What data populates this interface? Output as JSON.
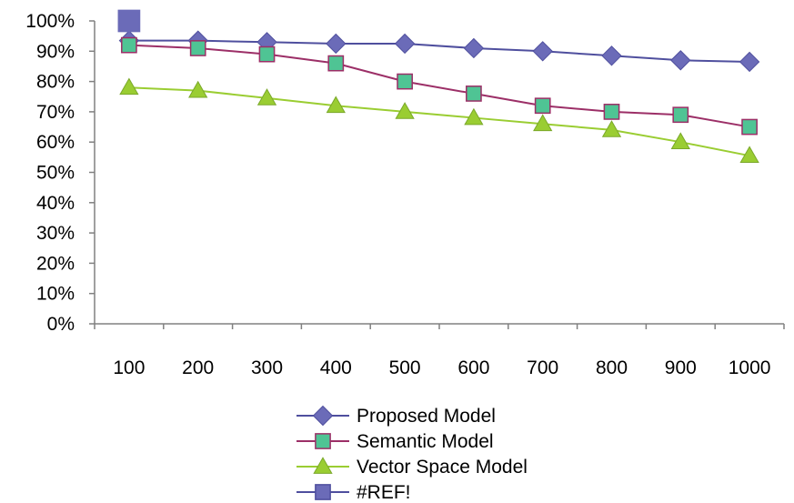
{
  "chart_data": {
    "type": "line",
    "categories": [
      "100",
      "200",
      "300",
      "400",
      "500",
      "600",
      "700",
      "800",
      "900",
      "1000"
    ],
    "ylim": [
      0,
      100
    ],
    "yticks": [
      "0%",
      "10%",
      "20%",
      "30%",
      "40%",
      "50%",
      "60%",
      "70%",
      "80%",
      "90%",
      "100%"
    ],
    "grid": false,
    "legend_position": "bottom",
    "series": [
      {
        "name": "Proposed Model",
        "values": [
          93.5,
          93.5,
          93,
          92.5,
          92.5,
          91,
          90,
          88.5,
          87,
          86.5
        ],
        "color": "#4f4f9e",
        "marker": "diamond",
        "marker_fill": "#6b6bb8"
      },
      {
        "name": "Semantic Model",
        "values": [
          92,
          91,
          89,
          86,
          80,
          76,
          72,
          70,
          69,
          65
        ],
        "color": "#9c2f67",
        "marker": "square",
        "marker_fill": "#4fc494"
      },
      {
        "name": "Vector Space Model",
        "values": [
          78,
          77,
          74.5,
          72,
          70,
          68,
          66,
          64,
          60,
          55.5
        ],
        "color": "#9acd32",
        "marker": "triangle",
        "marker_fill": "#9acd32"
      },
      {
        "name": "#REF!",
        "values": [
          100,
          null,
          null,
          null,
          null,
          null,
          null,
          null,
          null,
          null
        ],
        "color": "#4f4f9e",
        "marker": "square",
        "marker_fill": "#6b6bb8"
      }
    ]
  }
}
